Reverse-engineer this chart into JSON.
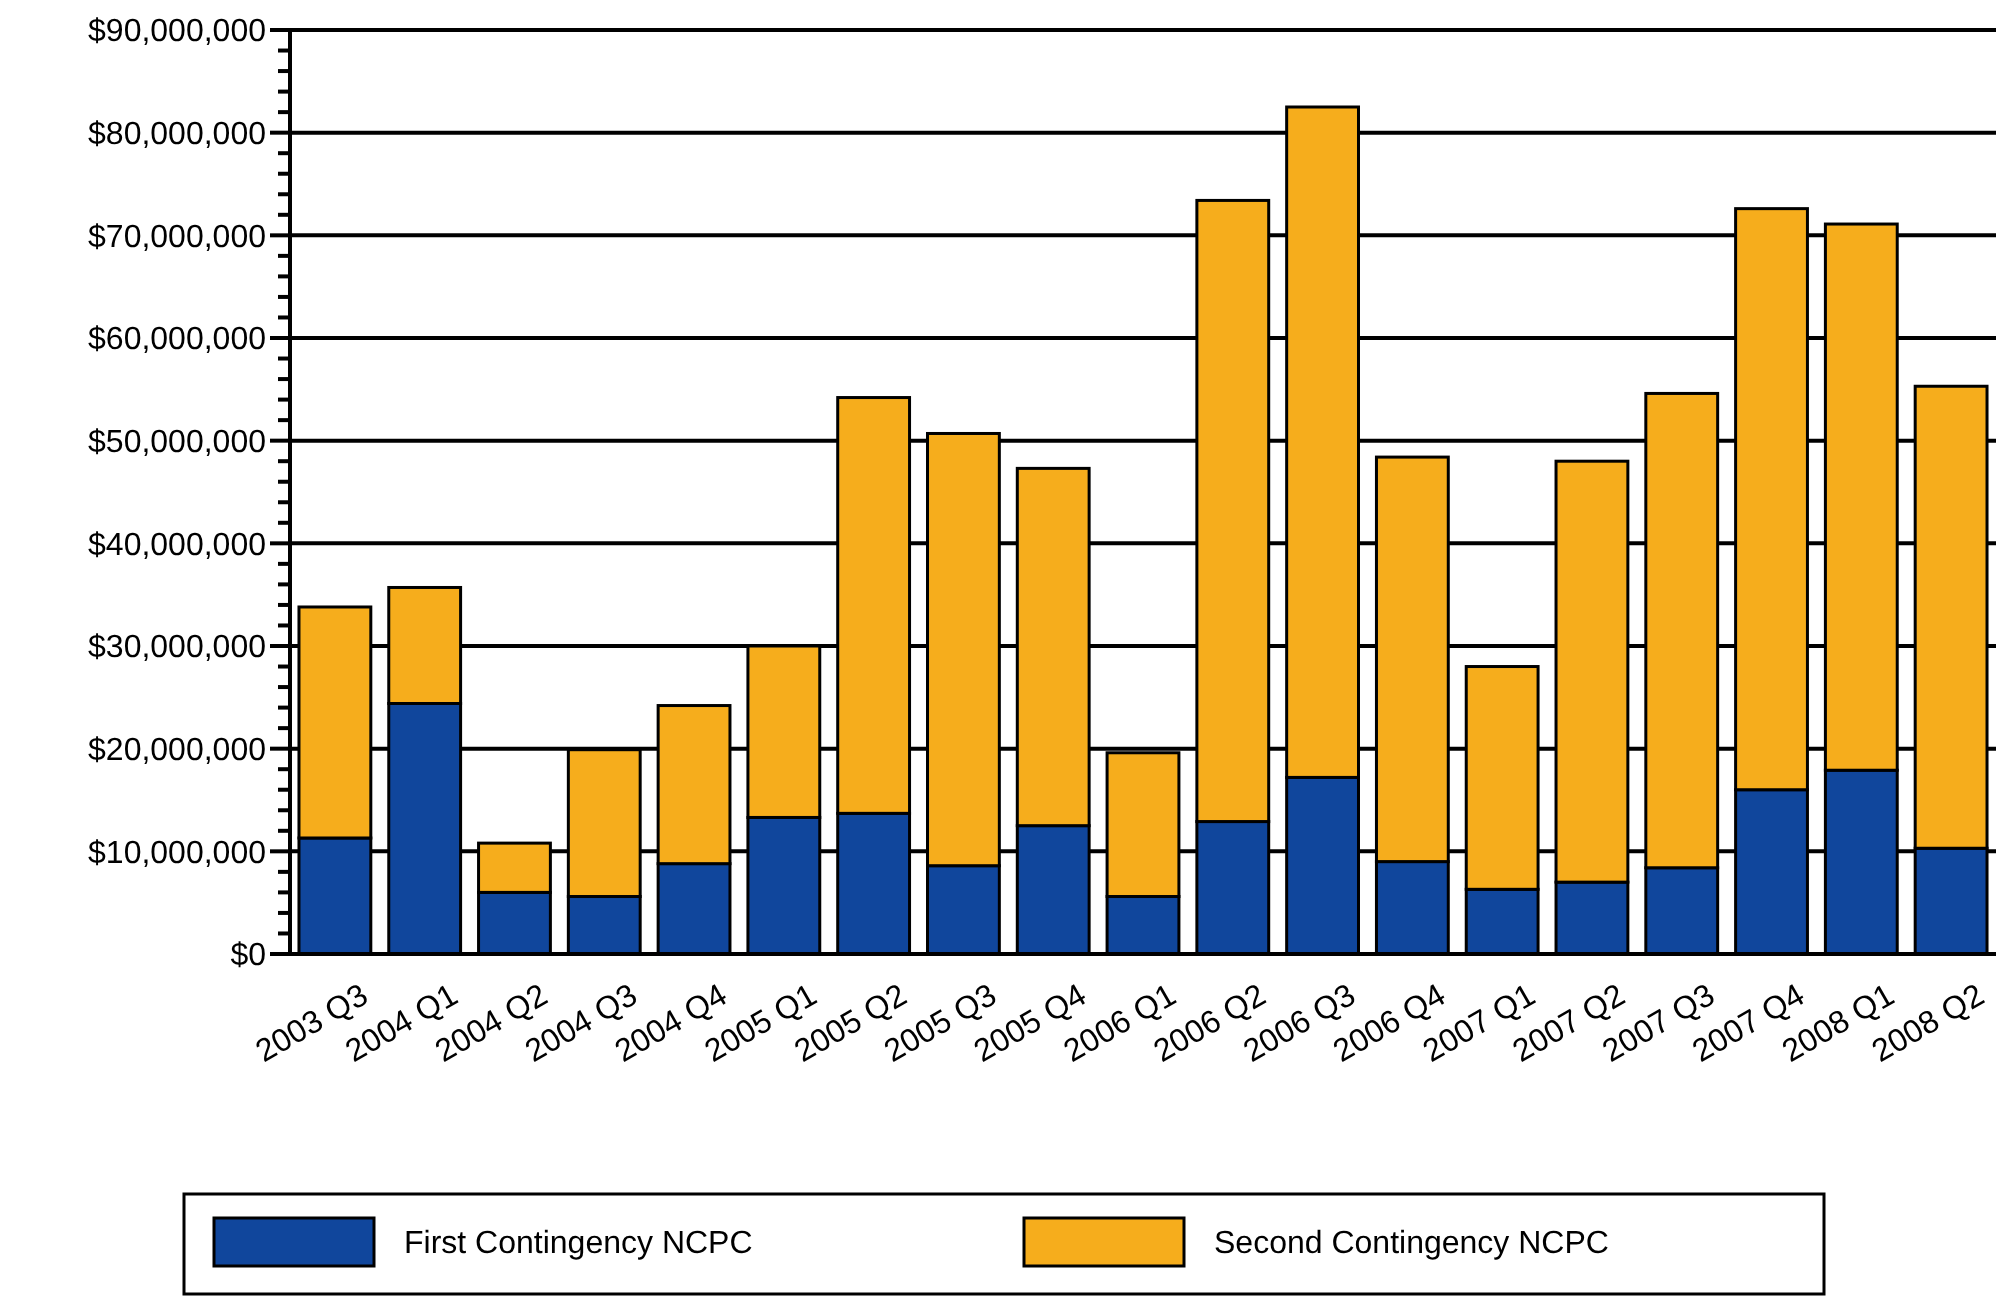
{
  "chart_data": {
    "type": "bar",
    "stacked": true,
    "categories": [
      "2003 Q3",
      "2004 Q1",
      "2004 Q2",
      "2004 Q3",
      "2004 Q4",
      "2005 Q1",
      "2005 Q2",
      "2005 Q3",
      "2005 Q4",
      "2006 Q1",
      "2006 Q2",
      "2006 Q3",
      "2006 Q4",
      "2007 Q1",
      "2007 Q2",
      "2007 Q3",
      "2007 Q4",
      "2008 Q1",
      "2008 Q2"
    ],
    "series": [
      {
        "name": "First Contingency NCPC",
        "color": "#10469c",
        "values": [
          11300000,
          24400000,
          6000000,
          5600000,
          8800000,
          13300000,
          13700000,
          8600000,
          12500000,
          5600000,
          12900000,
          17200000,
          9000000,
          6300000,
          7000000,
          8400000,
          16000000,
          17900000,
          10300000
        ]
      },
      {
        "name": "Second Contingency NCPC",
        "color": "#f6ad1c",
        "values": [
          22500000,
          11300000,
          4800000,
          14300000,
          15400000,
          16700000,
          40500000,
          42100000,
          34800000,
          14000000,
          60500000,
          65300000,
          39400000,
          21700000,
          41000000,
          46200000,
          56600000,
          53200000,
          45000000
        ]
      }
    ],
    "ylim": [
      0,
      90000000
    ],
    "yticks": [
      {
        "value": 0,
        "label": "$0"
      },
      {
        "value": 2000000,
        "label": null
      },
      {
        "value": 4000000,
        "label": null
      },
      {
        "value": 6000000,
        "label": null
      },
      {
        "value": 8000000,
        "label": null
      },
      {
        "value": 10000000,
        "label": "$10,000,000"
      },
      {
        "value": 12000000,
        "label": null
      },
      {
        "value": 14000000,
        "label": null
      },
      {
        "value": 16000000,
        "label": null
      },
      {
        "value": 18000000,
        "label": null
      },
      {
        "value": 20000000,
        "label": "$20,000,000"
      },
      {
        "value": 22000000,
        "label": null
      },
      {
        "value": 24000000,
        "label": null
      },
      {
        "value": 26000000,
        "label": null
      },
      {
        "value": 28000000,
        "label": null
      },
      {
        "value": 30000000,
        "label": "$30,000,000"
      },
      {
        "value": 32000000,
        "label": null
      },
      {
        "value": 34000000,
        "label": null
      },
      {
        "value": 36000000,
        "label": null
      },
      {
        "value": 38000000,
        "label": null
      },
      {
        "value": 40000000,
        "label": "$40,000,000"
      },
      {
        "value": 42000000,
        "label": null
      },
      {
        "value": 44000000,
        "label": null
      },
      {
        "value": 46000000,
        "label": null
      },
      {
        "value": 48000000,
        "label": null
      },
      {
        "value": 50000000,
        "label": "$50,000,000"
      },
      {
        "value": 52000000,
        "label": null
      },
      {
        "value": 54000000,
        "label": null
      },
      {
        "value": 56000000,
        "label": null
      },
      {
        "value": 58000000,
        "label": null
      },
      {
        "value": 60000000,
        "label": "$60,000,000"
      },
      {
        "value": 62000000,
        "label": null
      },
      {
        "value": 64000000,
        "label": null
      },
      {
        "value": 66000000,
        "label": null
      },
      {
        "value": 68000000,
        "label": null
      },
      {
        "value": 70000000,
        "label": "$70,000,000"
      },
      {
        "value": 72000000,
        "label": null
      },
      {
        "value": 74000000,
        "label": null
      },
      {
        "value": 76000000,
        "label": null
      },
      {
        "value": 78000000,
        "label": null
      },
      {
        "value": 80000000,
        "label": "$80,000,000"
      },
      {
        "value": 82000000,
        "label": null
      },
      {
        "value": 84000000,
        "label": null
      },
      {
        "value": 86000000,
        "label": null
      },
      {
        "value": 88000000,
        "label": null
      },
      {
        "value": 90000000,
        "label": "$90,000,000"
      }
    ],
    "grid": "y",
    "legend": "bottom"
  }
}
